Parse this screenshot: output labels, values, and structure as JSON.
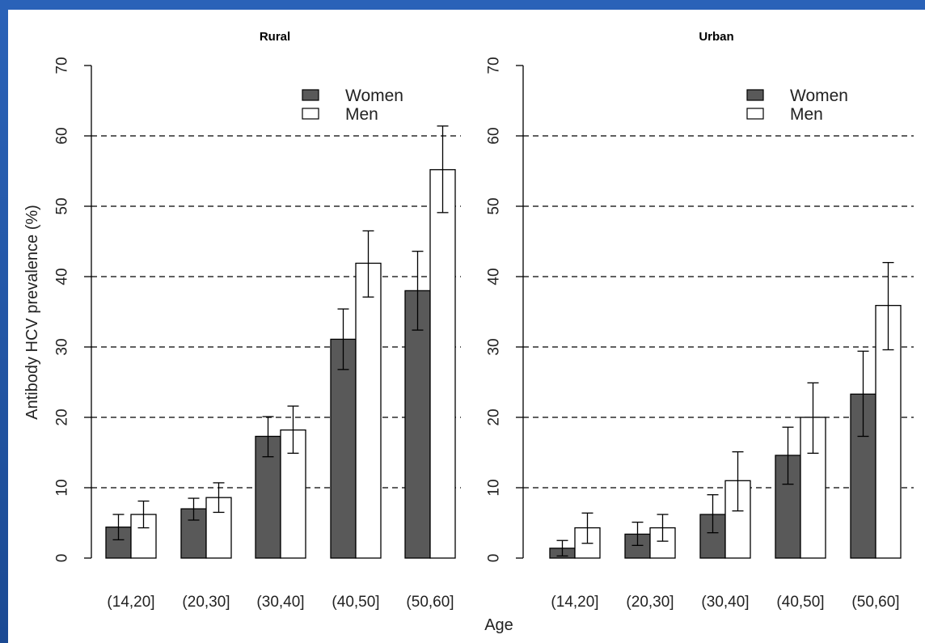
{
  "colors": {
    "frame": "#1f4f9a",
    "women_fill": "#595959",
    "men_fill": "#ffffff",
    "bar_stroke": "#000000",
    "grid": "#000000"
  },
  "chart_data": [
    {
      "type": "bar",
      "title": "Rural",
      "categories": [
        "(14,20]",
        "(20,30]",
        "(30,40]",
        "(40,50]",
        "(50,60]"
      ],
      "series": [
        {
          "name": "Women",
          "values": [
            4.4,
            7.0,
            17.3,
            31.1,
            38.0
          ],
          "error_low": [
            2.6,
            5.4,
            14.4,
            26.8,
            32.4
          ],
          "error_high": [
            6.2,
            8.5,
            20.1,
            35.4,
            43.6
          ]
        },
        {
          "name": "Men",
          "values": [
            6.2,
            8.6,
            18.2,
            41.9,
            55.2
          ],
          "error_low": [
            4.3,
            6.5,
            14.9,
            37.1,
            49.1
          ],
          "error_high": [
            8.1,
            10.7,
            21.6,
            46.5,
            61.4
          ]
        }
      ],
      "ylabel": "Antibody HCV prevalence (%)",
      "ylim": [
        0,
        70
      ],
      "yticks": [
        0,
        10,
        20,
        30,
        40,
        50,
        60,
        70
      ],
      "grid": [
        10,
        20,
        30,
        40,
        50,
        60
      ],
      "legend": "top-right"
    },
    {
      "type": "bar",
      "title": "Urban",
      "categories": [
        "(14,20]",
        "(20,30]",
        "(30,40]",
        "(40,50]",
        "(50,60]"
      ],
      "series": [
        {
          "name": "Women",
          "values": [
            1.4,
            3.4,
            6.2,
            14.6,
            23.3
          ],
          "error_low": [
            0.3,
            1.8,
            3.6,
            10.5,
            17.3
          ],
          "error_high": [
            2.5,
            5.1,
            9.0,
            18.6,
            29.4
          ]
        },
        {
          "name": "Men",
          "values": [
            4.3,
            4.3,
            11.0,
            20.0,
            35.9
          ],
          "error_low": [
            2.1,
            2.4,
            6.7,
            14.9,
            29.6
          ],
          "error_high": [
            6.4,
            6.2,
            15.1,
            24.9,
            42.0
          ]
        }
      ],
      "ylim": [
        0,
        70
      ],
      "yticks": [
        0,
        10,
        20,
        30,
        40,
        50,
        60,
        70
      ],
      "grid": [
        10,
        20,
        30,
        40,
        50,
        60
      ],
      "legend": "top-right"
    }
  ],
  "xlabel": "Age"
}
